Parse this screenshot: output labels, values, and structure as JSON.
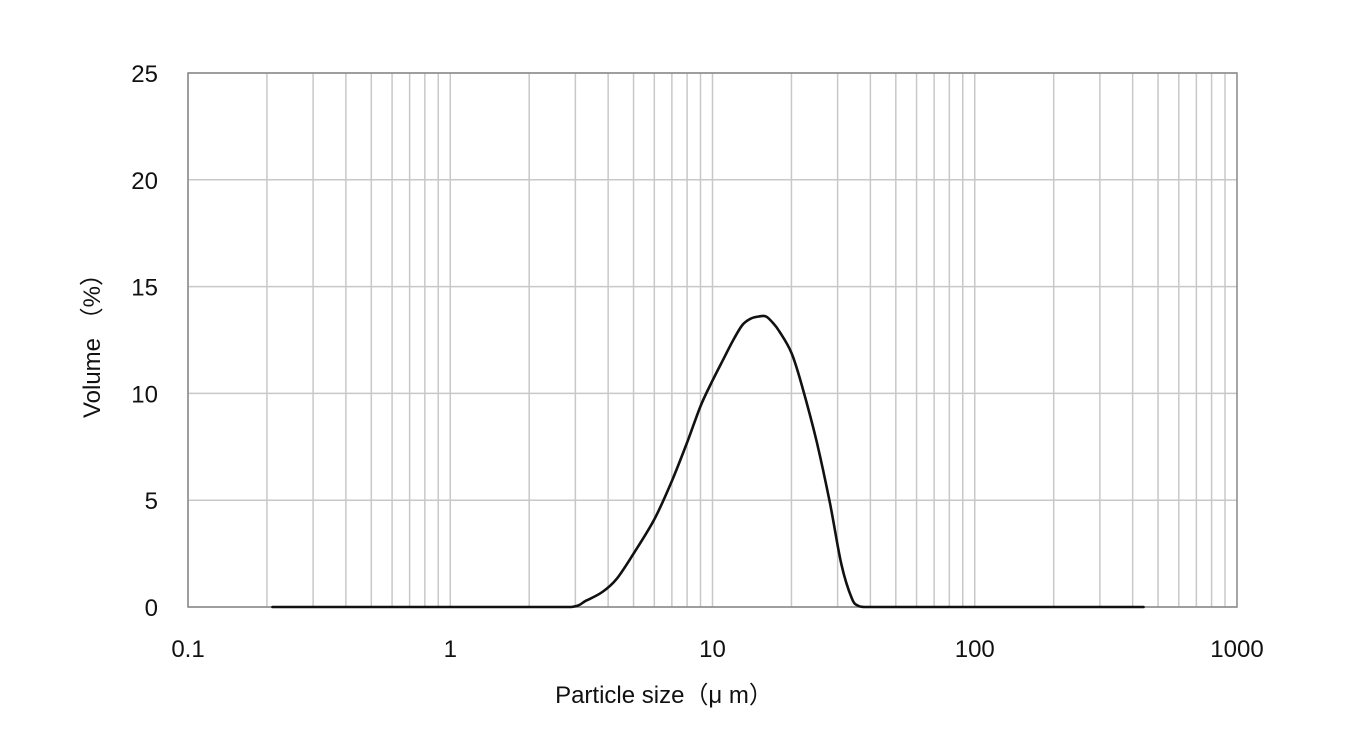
{
  "chart_data": {
    "type": "line",
    "xlabel": "Particle size（μ m）",
    "ylabel": "Volume （%）",
    "x_scale": "log",
    "xlim": [
      0.1,
      1000
    ],
    "ylim": [
      0,
      25
    ],
    "x_ticks": [
      "0.1",
      "1",
      "10",
      "100",
      "1000"
    ],
    "y_ticks": [
      "0",
      "5",
      "10",
      "15",
      "20",
      "25"
    ],
    "grid": true,
    "legend": "none",
    "series": [
      {
        "color": "#111111",
        "x": [
          0.21,
          0.5,
          1,
          2,
          2.9,
          3.3,
          3.8,
          4.3,
          5,
          6,
          7,
          8,
          9,
          10,
          11,
          12,
          13,
          14,
          15,
          16,
          17,
          18,
          20,
          22,
          25,
          28,
          31,
          34,
          36,
          38,
          42,
          50,
          100,
          200,
          440
        ],
        "y": [
          0,
          0,
          0,
          0,
          0,
          0.3,
          0.7,
          1.3,
          2.5,
          4.1,
          5.9,
          7.7,
          9.4,
          10.6,
          11.6,
          12.5,
          13.2,
          13.5,
          13.6,
          13.6,
          13.3,
          12.9,
          11.9,
          10.3,
          7.7,
          4.9,
          2.0,
          0.4,
          0.05,
          0,
          0,
          0,
          0,
          0,
          0
        ]
      }
    ]
  }
}
